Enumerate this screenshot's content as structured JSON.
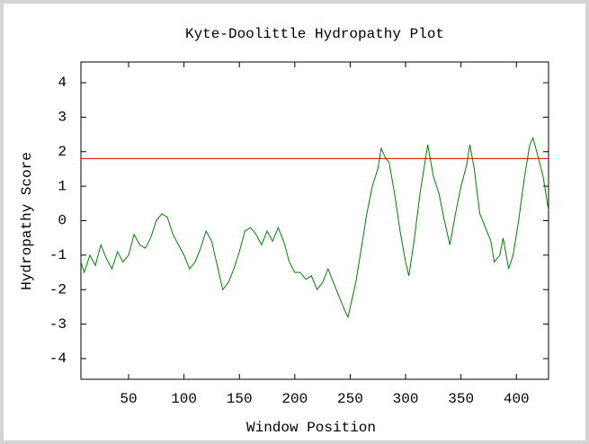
{
  "chart_data": {
    "type": "line",
    "title": "Kyte-Doolittle Hydropathy Plot",
    "x_label": "Window Position",
    "y_label": "Hydropathy Score",
    "xlim": [
      7,
      429
    ],
    "ylim": [
      -4.6,
      4.6
    ],
    "xticks": [
      50,
      100,
      150,
      200,
      250,
      300,
      350,
      400
    ],
    "yticks": [
      -4,
      -3,
      -2,
      -1,
      0,
      1,
      2,
      3,
      4
    ],
    "color": "#008000",
    "threshold": {
      "value": 1.8,
      "color": "#e00000"
    },
    "x": [
      7,
      10,
      15,
      20,
      25,
      30,
      35,
      40,
      45,
      50,
      55,
      60,
      65,
      70,
      75,
      80,
      85,
      90,
      95,
      100,
      105,
      110,
      115,
      120,
      125,
      130,
      135,
      140,
      145,
      150,
      155,
      160,
      165,
      170,
      175,
      180,
      185,
      190,
      195,
      200,
      205,
      210,
      215,
      220,
      225,
      230,
      235,
      240,
      245,
      248,
      255,
      260,
      265,
      270,
      275,
      278,
      282,
      285,
      290,
      295,
      300,
      303,
      308,
      313,
      320,
      325,
      330,
      335,
      340,
      345,
      350,
      355,
      358,
      362,
      367,
      372,
      377,
      380,
      385,
      388,
      393,
      397,
      402,
      407,
      412,
      415,
      420,
      424,
      429
    ],
    "values": [
      -1.2,
      -1.5,
      -1.0,
      -1.3,
      -0.7,
      -1.1,
      -1.4,
      -0.9,
      -1.2,
      -1.0,
      -0.4,
      -0.7,
      -0.8,
      -0.5,
      0.0,
      0.2,
      0.1,
      -0.4,
      -0.7,
      -1.0,
      -1.4,
      -1.2,
      -0.8,
      -0.3,
      -0.6,
      -1.3,
      -2.0,
      -1.8,
      -1.4,
      -0.9,
      -0.3,
      -0.2,
      -0.4,
      -0.7,
      -0.3,
      -0.6,
      -0.2,
      -0.6,
      -1.2,
      -1.5,
      -1.5,
      -1.7,
      -1.6,
      -2.0,
      -1.8,
      -1.4,
      -1.8,
      -2.2,
      -2.6,
      -2.8,
      -1.8,
      -0.8,
      0.2,
      1.0,
      1.5,
      2.1,
      1.8,
      1.7,
      0.8,
      -0.3,
      -1.2,
      -1.6,
      -0.5,
      0.8,
      2.2,
      1.3,
      0.8,
      0.0,
      -0.7,
      0.2,
      1.0,
      1.6,
      2.2,
      1.5,
      0.2,
      -0.2,
      -0.6,
      -1.2,
      -1.0,
      -0.5,
      -1.4,
      -1.0,
      0.0,
      1.2,
      2.2,
      2.4,
      1.8,
      1.3,
      0.3
    ]
  }
}
